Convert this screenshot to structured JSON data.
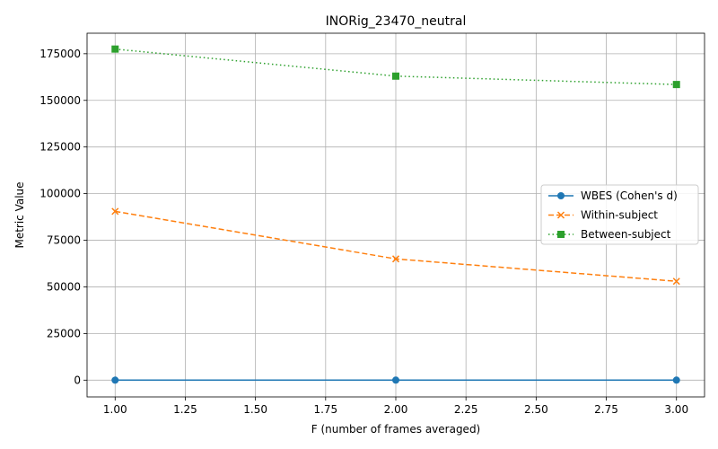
{
  "chart_data": {
    "type": "line",
    "title": "INORig_23470_neutral",
    "xlabel": "F (number of frames averaged)",
    "ylabel": "Metric Value",
    "x": [
      1,
      2,
      3
    ],
    "xlim": [
      0.9,
      3.1
    ],
    "ylim": [
      -9000,
      186000
    ],
    "xticks": [
      1.0,
      1.25,
      1.5,
      1.75,
      2.0,
      2.25,
      2.5,
      2.75,
      3.0
    ],
    "xtick_labels": [
      "1.00",
      "1.25",
      "1.50",
      "1.75",
      "2.00",
      "2.25",
      "2.50",
      "2.75",
      "3.00"
    ],
    "yticks": [
      0,
      25000,
      50000,
      75000,
      100000,
      125000,
      150000,
      175000
    ],
    "ytick_labels": [
      "0",
      "25000",
      "50000",
      "75000",
      "100000",
      "125000",
      "150000",
      "175000"
    ],
    "grid": true,
    "legend_position": "center-right",
    "series": [
      {
        "name": "WBES (Cohen's d)",
        "values": [
          0,
          0,
          0
        ],
        "color": "#1f77b4",
        "line_style": "solid",
        "marker": "circle"
      },
      {
        "name": "Within-subject",
        "values": [
          90500,
          65000,
          53000
        ],
        "color": "#ff7f0e",
        "line_style": "dashed",
        "marker": "x"
      },
      {
        "name": "Between-subject",
        "values": [
          177500,
          163000,
          158500
        ],
        "color": "#2ca02c",
        "line_style": "dotted",
        "marker": "square"
      }
    ]
  }
}
